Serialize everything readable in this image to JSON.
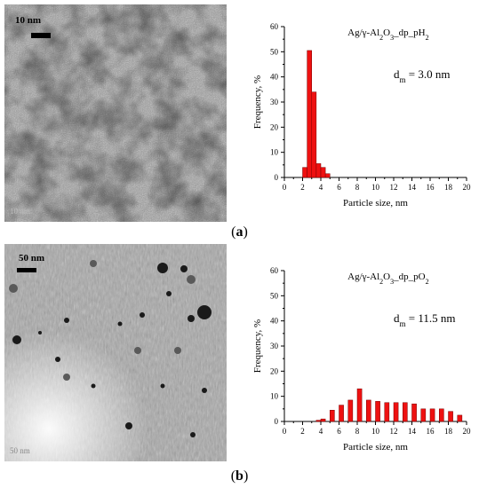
{
  "panels": [
    {
      "label": "a",
      "tem": {
        "scale_label": "10 nm",
        "watermark": "10 nm"
      },
      "chart_data": {
        "type": "bar",
        "title": "Ag/γ-Al2O3_dp_pH2",
        "title_parts": {
          "main": "Ag/γ-Al",
          "sub1": "2",
          "mid": "O",
          "sub2": "3",
          "tail": "_dp_pH",
          "sub3": "2"
        },
        "annotation": {
          "main": "d",
          "sub": "m",
          "value": " = 3.0 nm"
        },
        "xlabel": "Particle size, nm",
        "ylabel": "Frequency, %",
        "xlim": [
          0,
          20
        ],
        "ylim": [
          0,
          60
        ],
        "x_ticks": [
          0,
          2,
          4,
          6,
          8,
          10,
          12,
          14,
          16,
          18,
          20
        ],
        "y_ticks": [
          0,
          10,
          20,
          30,
          40,
          50,
          60
        ],
        "bar_width": 0.5,
        "x": [
          2.0,
          2.5,
          3.0,
          3.5,
          4.0,
          4.5
        ],
        "values": [
          4.0,
          50.5,
          34.0,
          5.5,
          4.0,
          1.5
        ],
        "bar_color": "#ee1111"
      }
    },
    {
      "label": "b",
      "tem": {
        "scale_label": "50 nm",
        "watermark": "50 nm"
      },
      "chart_data": {
        "type": "bar",
        "title": "Ag/γ-Al2O3_dp_pO2",
        "title_parts": {
          "main": "Ag/γ-Al",
          "sub1": "2",
          "mid": "O",
          "sub2": "3",
          "tail": "_dp_pO",
          "sub3": "2"
        },
        "annotation": {
          "main": "d",
          "sub": "m",
          "value": " = 11.5 nm"
        },
        "xlabel": "Particle size, nm",
        "ylabel": "Frequency, %",
        "xlim": [
          0,
          20
        ],
        "ylim": [
          0,
          60
        ],
        "x_ticks": [
          0,
          2,
          4,
          6,
          8,
          10,
          12,
          14,
          16,
          18,
          20
        ],
        "y_ticks": [
          0,
          10,
          20,
          30,
          40,
          50,
          60
        ],
        "bar_width": 0.5,
        "x": [
          3.5,
          4.0,
          5.0,
          6.0,
          7.0,
          8.0,
          9.0,
          10.0,
          11.0,
          12.0,
          13.0,
          14.0,
          15.0,
          16.0,
          17.0,
          18.0,
          19.0
        ],
        "values": [
          0.5,
          1.0,
          4.5,
          6.5,
          8.5,
          13.0,
          8.5,
          8.0,
          7.5,
          7.5,
          7.5,
          7.0,
          5.0,
          5.0,
          5.0,
          4.0,
          2.5
        ],
        "bar_color": "#ee1111"
      }
    }
  ]
}
